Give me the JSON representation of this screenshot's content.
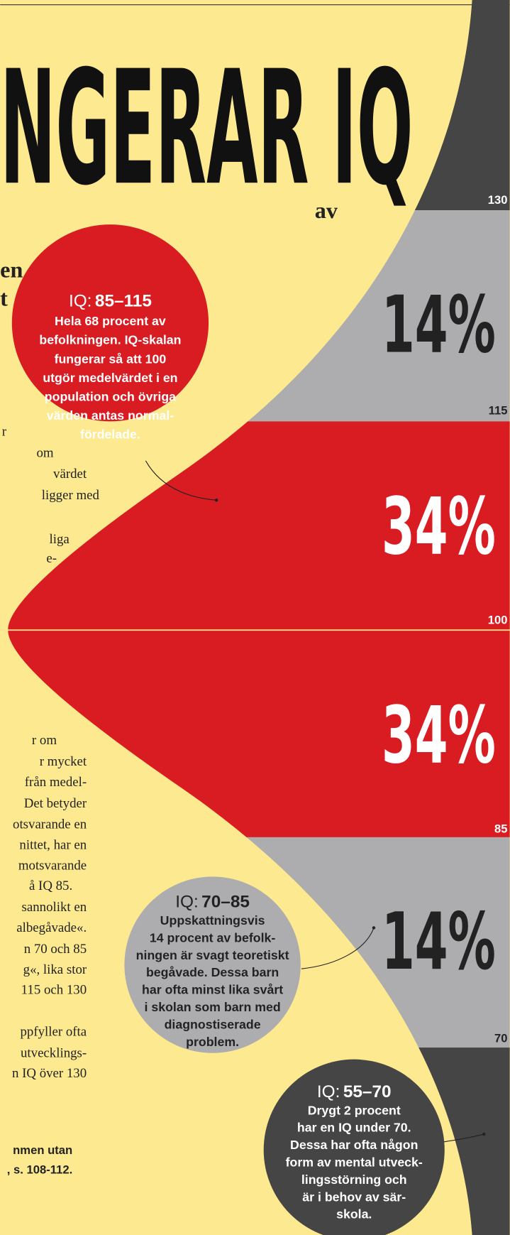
{
  "header": {
    "title": "NGERAR IQ",
    "subtitle_lines": [
      "av",
      "en",
      "t"
    ]
  },
  "body_fragments": [
    "r",
    "om",
    "värdet",
    "ligger med",
    "liga",
    "e-",
    "r  om",
    "r  mycket",
    "från  medel-",
    "Det betyder",
    "otsvarande en",
    "nittet, har en",
    "motsvarande",
    "å IQ 85.",
    "sannolikt en",
    "albegåvade«.",
    "n 70 och 85",
    "g«, lika stor",
    "115 och 130",
    "ppfyller ofta",
    "utvecklings-",
    "n IQ över 130"
  ],
  "source_lines": [
    "nmen utan",
    ", s. 108-112."
  ],
  "bands": [
    {
      "percent": "14%"
    },
    {
      "percent": "34%"
    },
    {
      "percent": "34%"
    },
    {
      "percent": "14%"
    }
  ],
  "boundary_labels": [
    "130",
    "115",
    "100",
    "85",
    "70"
  ],
  "bubbles": [
    {
      "prefix": "IQ:",
      "range": "85–115",
      "lines": [
        "Hela 68 procent av",
        "befolkningen. IQ-skalan",
        "fungerar så att 100",
        "utgör medelvärdet i en",
        "population och övriga",
        "värden antas normal-",
        "fördelade."
      ]
    },
    {
      "prefix": "IQ:",
      "range": "70–85",
      "lines": [
        "Uppskattningsvis",
        "14 procent av befolk-",
        "ningen är svagt teoretiskt",
        "begåvade. Dessa barn",
        "har ofta minst lika svårt",
        "i skolan som barn med",
        "diagnostiserade",
        "problem."
      ]
    },
    {
      "prefix": "IQ:",
      "range": "55–70",
      "lines": [
        "Drygt 2 procent",
        "har en IQ under 70.",
        "Dessa har ofta någon",
        "form av mental utveck-",
        "lingsstörning och",
        "är i behov av sär-",
        "skola."
      ]
    }
  ]
}
